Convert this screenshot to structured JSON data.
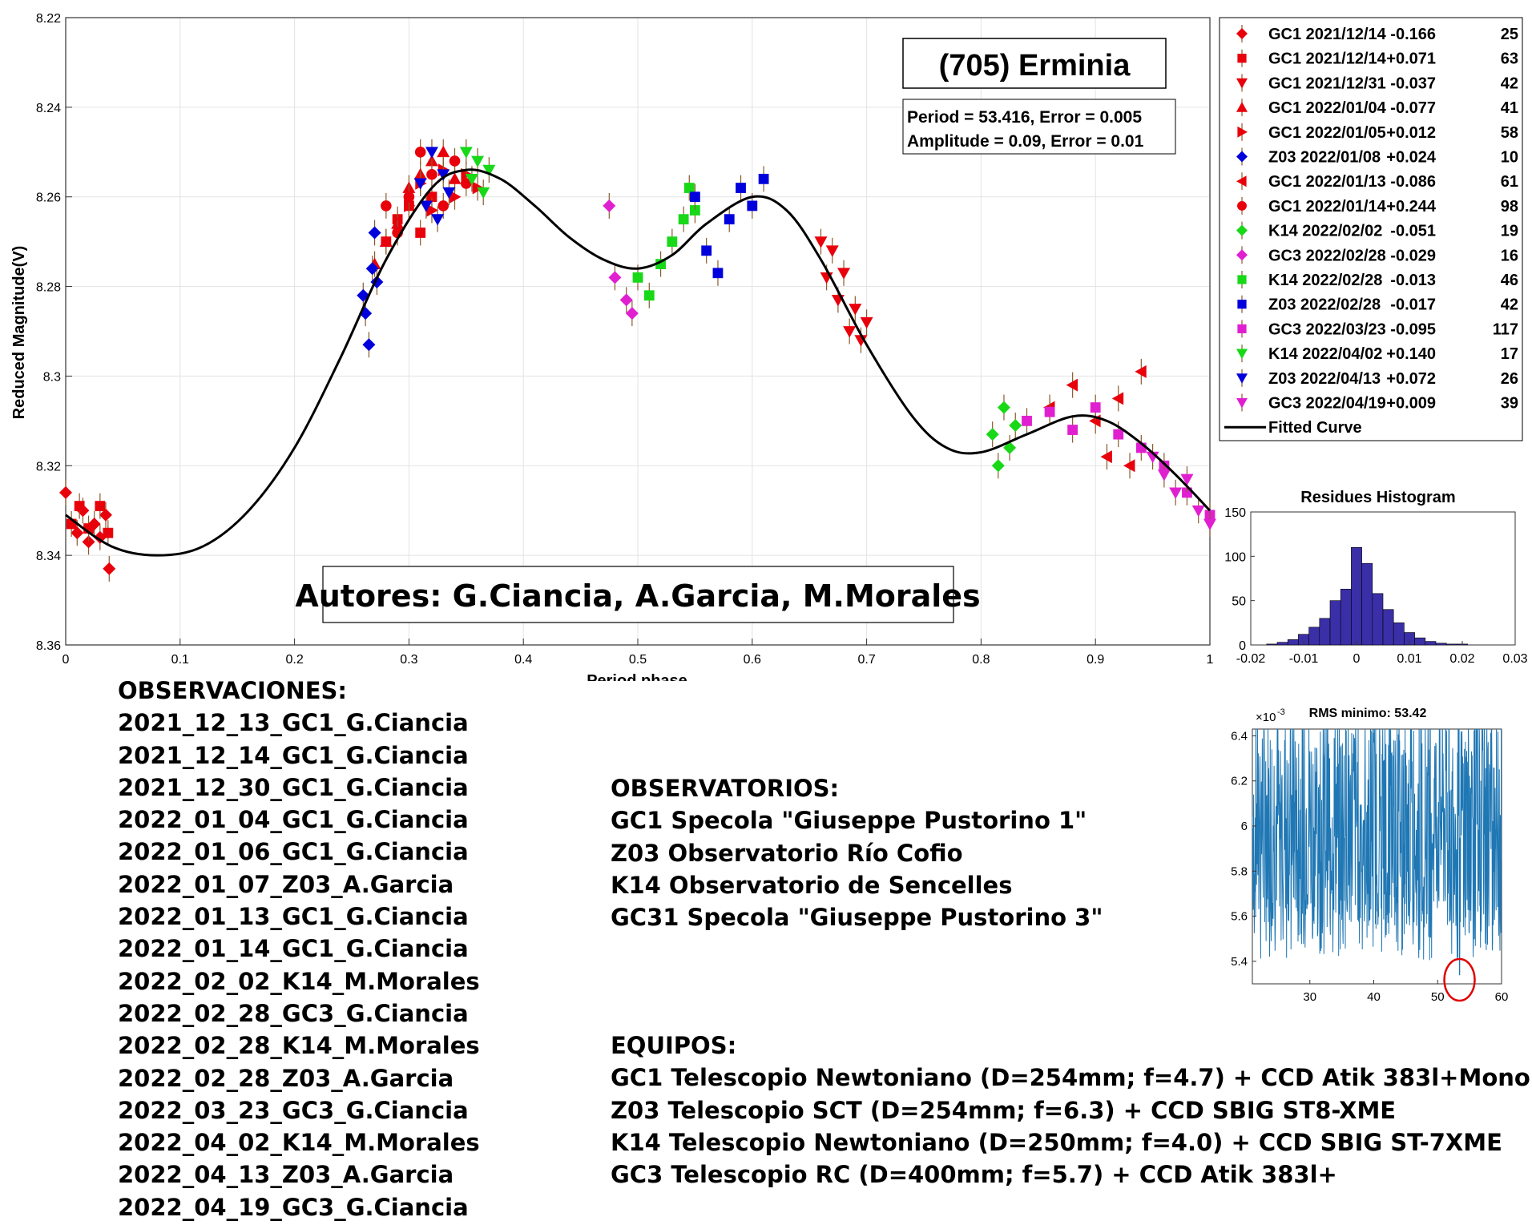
{
  "main_chart": {
    "type": "scatter",
    "title_box": "(705) Erminia",
    "params": [
      "Period =  53.416, Error = 0.005",
      "Amplitude = 0.09, Error = 0.01"
    ],
    "authors": "Autores: G.Ciancia, A.Garcia, M.Morales",
    "xlabel": "Period phase",
    "ylabel": "Reduced Magnitude(V)",
    "xlim": [
      0,
      1
    ],
    "ylim": [
      8.22,
      8.36
    ],
    "y_reversed": true,
    "grid": true,
    "legend_position": "outside-top-right",
    "x_ticks": [
      "0",
      "0.1",
      "0.2",
      "0.3",
      "0.4",
      "0.5",
      "0.6",
      "0.7",
      "0.8",
      "0.9",
      "1"
    ],
    "y_ticks": [
      "8.22",
      "8.24",
      "8.26",
      "8.28",
      "8.3",
      "8.32",
      "8.34",
      "8.36"
    ],
    "fitted_curve": {
      "name": "Fitted Curve",
      "x": [
        0,
        0.04,
        0.08,
        0.12,
        0.16,
        0.2,
        0.24,
        0.28,
        0.32,
        0.35,
        0.38,
        0.41,
        0.44,
        0.47,
        0.5,
        0.53,
        0.56,
        0.6,
        0.63,
        0.66,
        0.7,
        0.74,
        0.77,
        0.8,
        0.84,
        0.88,
        0.91,
        0.94,
        0.97,
        1
      ],
      "y": [
        8.331,
        8.338,
        8.34,
        8.338,
        8.33,
        8.316,
        8.296,
        8.274,
        8.258,
        8.254,
        8.256,
        8.262,
        8.269,
        8.274,
        8.276,
        8.273,
        8.266,
        8.26,
        8.263,
        8.274,
        8.293,
        8.309,
        8.316,
        8.317,
        8.313,
        8.309,
        8.31,
        8.315,
        8.322,
        8.33
      ]
    },
    "series": [
      {
        "name": "GC1 2021/12/14",
        "offset": "-0.166",
        "count": "25",
        "marker": "diamond",
        "color": "#e8000b",
        "x": [
          0.0,
          0.01,
          0.015,
          0.02,
          0.025,
          0.03,
          0.035,
          0.038
        ],
        "y": [
          8.326,
          8.335,
          8.33,
          8.337,
          8.333,
          8.336,
          8.331,
          8.343
        ]
      },
      {
        "name": "GC1 2021/12/14",
        "offset": "+0.071",
        "count": "63",
        "marker": "square",
        "color": "#e8000b",
        "x": [
          0.005,
          0.012,
          0.02,
          0.03,
          0.037,
          0.28,
          0.29,
          0.3,
          0.31,
          0.32
        ],
        "y": [
          8.333,
          8.329,
          8.334,
          8.329,
          8.335,
          8.27,
          8.265,
          8.262,
          8.268,
          8.26
        ]
      },
      {
        "name": "GC1 2021/12/31",
        "offset": "-0.037",
        "count": "42",
        "marker": "triangle-down",
        "color": "#e8000b",
        "x": [
          0.66,
          0.665,
          0.67,
          0.675,
          0.68,
          0.685,
          0.69,
          0.695,
          0.7
        ],
        "y": [
          8.27,
          8.278,
          8.272,
          8.283,
          8.277,
          8.29,
          8.285,
          8.292,
          8.288
        ]
      },
      {
        "name": "GC1 2022/01/04",
        "offset": "-0.077",
        "count": "41",
        "marker": "triangle-up",
        "color": "#e8000b",
        "x": [
          0.27,
          0.28,
          0.29,
          0.3,
          0.31,
          0.32,
          0.33,
          0.34
        ],
        "y": [
          8.275,
          8.27,
          8.266,
          8.258,
          8.255,
          8.252,
          8.25,
          8.256
        ]
      },
      {
        "name": "GC1 2022/01/05",
        "offset": "+0.012",
        "count": "58",
        "marker": "triangle-right",
        "color": "#e8000b",
        "x": [
          0.3,
          0.31,
          0.32,
          0.33,
          0.34,
          0.35,
          0.36
        ],
        "y": [
          8.262,
          8.257,
          8.263,
          8.254,
          8.26,
          8.255,
          8.258
        ]
      },
      {
        "name": "Z03 2022/01/08",
        "offset": "+0.024",
        "count": "10",
        "marker": "diamond",
        "color": "#0000dd",
        "x": [
          0.26,
          0.262,
          0.265,
          0.268,
          0.27,
          0.272
        ],
        "y": [
          8.282,
          8.286,
          8.293,
          8.276,
          8.268,
          8.279
        ]
      },
      {
        "name": "GC1 2022/01/13",
        "offset": "-0.086",
        "count": "61",
        "marker": "triangle-left",
        "color": "#e8000b",
        "x": [
          0.86,
          0.88,
          0.9,
          0.91,
          0.92,
          0.93,
          0.94
        ],
        "y": [
          8.307,
          8.302,
          8.31,
          8.318,
          8.305,
          8.32,
          8.299
        ]
      },
      {
        "name": "GC1 2022/01/14",
        "offset": "+0.244",
        "count": "98",
        "marker": "circle",
        "color": "#e8000b",
        "x": [
          0.28,
          0.29,
          0.3,
          0.31,
          0.32,
          0.33,
          0.34,
          0.35
        ],
        "y": [
          8.262,
          8.268,
          8.26,
          8.25,
          8.255,
          8.262,
          8.252,
          8.257
        ]
      },
      {
        "name": "K14 2022/02/02",
        "offset": "-0.051",
        "count": "19",
        "marker": "diamond",
        "color": "#18d818",
        "x": [
          0.81,
          0.815,
          0.82,
          0.825,
          0.83
        ],
        "y": [
          8.313,
          8.32,
          8.307,
          8.316,
          8.311
        ]
      },
      {
        "name": "GC3 2022/02/28",
        "offset": "-0.029",
        "count": "16",
        "marker": "diamond",
        "color": "#e020d0",
        "x": [
          0.475,
          0.48,
          0.49,
          0.495
        ],
        "y": [
          8.262,
          8.278,
          8.283,
          8.286
        ]
      },
      {
        "name": "K14 2022/02/28",
        "offset": "-0.013",
        "count": "46",
        "marker": "square",
        "color": "#18d818",
        "x": [
          0.5,
          0.51,
          0.52,
          0.53,
          0.54,
          0.545,
          0.55
        ],
        "y": [
          8.278,
          8.282,
          8.275,
          8.27,
          8.265,
          8.258,
          8.263
        ]
      },
      {
        "name": "Z03 2022/02/28",
        "offset": "-0.017",
        "count": "42",
        "marker": "square",
        "color": "#0000dd",
        "x": [
          0.55,
          0.56,
          0.57,
          0.58,
          0.59,
          0.6,
          0.61
        ],
        "y": [
          8.26,
          8.272,
          8.277,
          8.265,
          8.258,
          8.262,
          8.256
        ]
      },
      {
        "name": "GC3 2022/03/23",
        "offset": "-0.095",
        "count": "117",
        "marker": "square",
        "color": "#e020d0",
        "x": [
          0.84,
          0.86,
          0.88,
          0.9,
          0.92,
          0.94,
          0.96,
          0.98,
          1.0
        ],
        "y": [
          8.31,
          8.308,
          8.312,
          8.307,
          8.313,
          8.316,
          8.32,
          8.326,
          8.331
        ]
      },
      {
        "name": "K14 2022/04/02",
        "offset": "+0.140",
        "count": "17",
        "marker": "triangle-down",
        "color": "#18d818",
        "x": [
          0.35,
          0.355,
          0.36,
          0.365,
          0.37
        ],
        "y": [
          8.25,
          8.256,
          8.252,
          8.259,
          8.254
        ]
      },
      {
        "name": "Z03 2022/04/13",
        "offset": "+0.072",
        "count": "26",
        "marker": "triangle-down",
        "color": "#0000dd",
        "x": [
          0.31,
          0.315,
          0.32,
          0.325,
          0.33,
          0.335
        ],
        "y": [
          8.257,
          8.262,
          8.25,
          8.265,
          8.255,
          8.259
        ]
      },
      {
        "name": "GC3 2022/04/19",
        "offset": "+0.009",
        "count": "39",
        "marker": "triangle-down",
        "color": "#e020d0",
        "x": [
          0.95,
          0.96,
          0.97,
          0.98,
          0.99,
          1.0
        ],
        "y": [
          8.318,
          8.322,
          8.326,
          8.323,
          8.33,
          8.333
        ]
      }
    ]
  },
  "residues_histogram": {
    "type": "bar",
    "title": "Residues Histogram",
    "xlim": [
      -0.02,
      0.03
    ],
    "ylim": [
      0,
      150
    ],
    "x_ticks": [
      "-0.02",
      "-0.01",
      "0",
      "0.01",
      "0.02",
      "0.03"
    ],
    "y_ticks": [
      "0",
      "50",
      "100",
      "150"
    ],
    "color": "#3b2fa8",
    "bin_centers": [
      -0.016,
      -0.014,
      -0.012,
      -0.01,
      -0.008,
      -0.006,
      -0.004,
      -0.002,
      0.0,
      0.002,
      0.004,
      0.006,
      0.008,
      0.01,
      0.012,
      0.014,
      0.016,
      0.018,
      0.02
    ],
    "values": [
      1,
      3,
      6,
      12,
      20,
      30,
      50,
      63,
      110,
      92,
      58,
      40,
      25,
      14,
      8,
      4,
      2,
      1,
      1
    ]
  },
  "rms_plot": {
    "type": "line",
    "title": "RMS minimo: 53.42",
    "exponent_label": "×10",
    "exponent": "-3",
    "xlim": [
      21,
      60
    ],
    "ylim": [
      5.3,
      6.43
    ],
    "x_ticks": [
      "30",
      "40",
      "50",
      "60"
    ],
    "y_ticks": [
      "6.4",
      "6.2",
      "6",
      "5.8",
      "5.6",
      "5.4"
    ],
    "color": "#1f77b4",
    "min_marker": {
      "x": 53.42,
      "y": 5.34,
      "color": "#e00000"
    }
  },
  "notes": {
    "observations_title": "OBSERVACIONES:",
    "observations": [
      "2021_12_13_GC1_G.Ciancia",
      "2021_12_14_GC1_G.Ciancia",
      "2021_12_30_GC1_G.Ciancia",
      "2022_01_04_GC1_G.Ciancia",
      "2022_01_06_GC1_G.Ciancia",
      "2022_01_07_Z03_A.Garcia",
      "2022_01_13_GC1_G.Ciancia",
      "2022_01_14_GC1_G.Ciancia",
      "2022_02_02_K14_M.Morales",
      "2022_02_28_GC3_G.Ciancia",
      "2022_02_28_K14_M.Morales",
      "2022_02_28_Z03_A.Garcia",
      "2022_03_23_GC3_G.Ciancia",
      "2022_04_02_K14_M.Morales",
      "2022_04_13_Z03_A.Garcia",
      "2022_04_19_GC3_G.Ciancia"
    ],
    "observatories_title": "OBSERVATORIOS:",
    "observatories": [
      "GC1 Specola \"Giuseppe Pustorino 1\"",
      "Z03 Observatorio Río Cofio",
      "K14 Observatorio de Sencelles",
      "GC31 Specola \"Giuseppe Pustorino 3\""
    ],
    "equipment_title": "EQUIPOS:",
    "equipment": [
      "GC1 Telescopio Newtoniano (D=254mm; f=4.7) + CCD Atik 383l+Mono",
      "Z03 Telescopio SCT (D=254mm; f=6.3) + CCD SBIG ST8-XME",
      "K14 Telescopio Newtoniano (D=250mm; f=4.0) + CCD SBIG ST-7XME",
      "GC3 Telescopio RC (D=400mm; f=5.7) + CCD Atik 383l+"
    ]
  }
}
